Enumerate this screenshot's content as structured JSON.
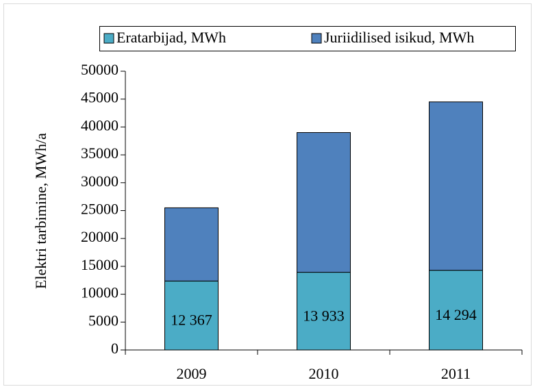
{
  "chart_data": {
    "type": "stacked-bar",
    "y_label": "Elektri tarbimine, MWh/a",
    "categories": [
      "2009",
      "2010",
      "2011"
    ],
    "series": [
      {
        "name": "Eratarbijad, MWh",
        "color": "#4bacc6",
        "values": [
          12367,
          13933,
          14294
        ],
        "value_labels": [
          "12 367",
          "13 933",
          "14 294"
        ]
      },
      {
        "name": "Juriidilised isikud, MWh",
        "color": "#4f81bd",
        "values": [
          13133,
          25067,
          30206
        ]
      }
    ],
    "ylim": [
      0,
      50000
    ],
    "yticks": [
      0,
      5000,
      10000,
      15000,
      20000,
      25000,
      30000,
      35000,
      40000,
      45000,
      50000
    ],
    "legend": "top"
  }
}
